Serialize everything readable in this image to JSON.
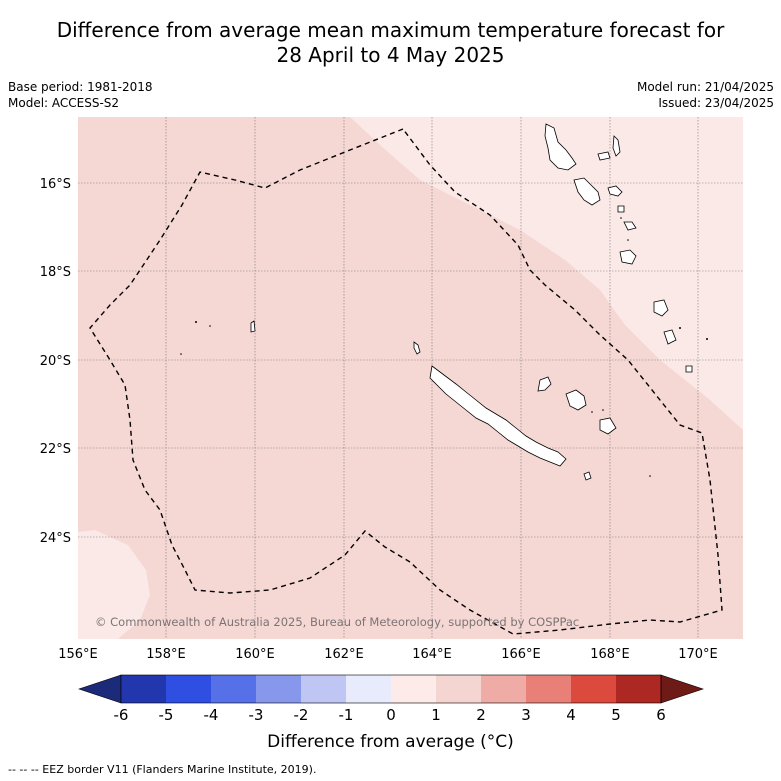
{
  "header": {
    "title_line1": "Difference from average mean maximum temperature forecast for",
    "title_line2": "28 April to 4 May 2025",
    "base_period": "Base period: 1981-2018",
    "model": "Model: ACCESS-S2",
    "model_run": "Model run: 21/04/2025",
    "issued": "Issued: 23/04/2025"
  },
  "map": {
    "lat_labels": [
      "16°S",
      "18°S",
      "20°S",
      "22°S",
      "24°S"
    ],
    "lon_labels": [
      "156°E",
      "158°E",
      "160°E",
      "162°E",
      "164°E",
      "166°E",
      "168°E",
      "170°E"
    ],
    "watermark": "© Commonwealth of Australia 2025, Bureau of Meteorology, supported by COSPPac",
    "colors": {
      "anomaly_0_1": "#fbe9e7",
      "anomaly_1_2": "#f5d7d4",
      "coastline": "#000000",
      "eez_border": "#000000"
    }
  },
  "colorbar": {
    "ticks": [
      "-6",
      "-5",
      "-4",
      "-3",
      "-2",
      "-1",
      "0",
      "1",
      "2",
      "3",
      "4",
      "5",
      "6"
    ],
    "colors": [
      "#1c2a7a",
      "#2236ad",
      "#2f4fe3",
      "#5671e8",
      "#8797ec",
      "#c0c6f4",
      "#e8ebfb",
      "#fcebe8",
      "#f5d5d1",
      "#efaca6",
      "#e88078",
      "#dc4a3e",
      "#ad2822",
      "#6e1a16"
    ],
    "label": "Difference from average (°C)"
  },
  "footnote": "-- -- -- EEZ border V11 (Flanders Marine Institute, 2019)."
}
